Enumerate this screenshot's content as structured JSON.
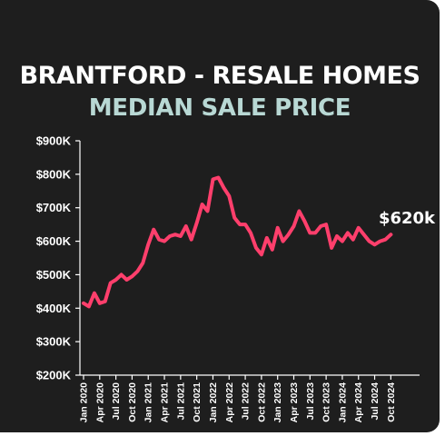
{
  "colors": {
    "background": "#1e1e1e",
    "title": "#ffffff",
    "subtitle": "#b8d8d4",
    "line": "#ff3f6c",
    "axis": "#ffffff"
  },
  "chart_data": {
    "type": "line",
    "title": "BRANTFORD - RESALE HOMES",
    "subtitle": "MEDIAN SALE PRICE",
    "xlabel": "",
    "ylabel": "",
    "ylim": [
      200000,
      900000
    ],
    "y_ticks": [
      200000,
      300000,
      400000,
      500000,
      600000,
      700000,
      800000,
      900000
    ],
    "y_tick_labels": [
      "$200K",
      "$300K",
      "$400K",
      "$500K",
      "$600K",
      "$700K",
      "$800K",
      "$900K"
    ],
    "x_tick_labels": [
      "Jan 2020",
      "Apr 2020",
      "Jul 2020",
      "Oct 2020",
      "Jan 2021",
      "Apr 2021",
      "Jul 2021",
      "Oct 2021",
      "Jan 2022",
      "Apr 2022",
      "Jul 2022",
      "Oct 2022",
      "Jan 2023",
      "Apr 2023",
      "Jul 2023",
      "Oct 2023",
      "Jan 2024",
      "Apr 2024",
      "Jul 2024",
      "Oct 2024"
    ],
    "grid": false,
    "annotation": "$620k",
    "series": [
      {
        "x": [
          "2020-01",
          "2020-02",
          "2020-03",
          "2020-04",
          "2020-05",
          "2020-06",
          "2020-07",
          "2020-08",
          "2020-09",
          "2020-10",
          "2020-11",
          "2020-12",
          "2021-01",
          "2021-02",
          "2021-03",
          "2021-04",
          "2021-05",
          "2021-06",
          "2021-07",
          "2021-08",
          "2021-09",
          "2021-10",
          "2021-11",
          "2021-12",
          "2022-01",
          "2022-02",
          "2022-03",
          "2022-04",
          "2022-05",
          "2022-06",
          "2022-07",
          "2022-08",
          "2022-09",
          "2022-10",
          "2022-11",
          "2022-12",
          "2023-01",
          "2023-02",
          "2023-03",
          "2023-04",
          "2023-05",
          "2023-06",
          "2023-07",
          "2023-08",
          "2023-09",
          "2023-10",
          "2023-11",
          "2023-12",
          "2024-01",
          "2024-02",
          "2024-03",
          "2024-04",
          "2024-05",
          "2024-06",
          "2024-07",
          "2024-08",
          "2024-09",
          "2024-10"
        ],
        "values": [
          415000,
          405000,
          445000,
          415000,
          420000,
          475000,
          485000,
          500000,
          485000,
          495000,
          510000,
          535000,
          590000,
          635000,
          605000,
          600000,
          615000,
          620000,
          615000,
          645000,
          605000,
          655000,
          710000,
          690000,
          785000,
          790000,
          760000,
          735000,
          670000,
          650000,
          650000,
          625000,
          580000,
          560000,
          610000,
          575000,
          640000,
          600000,
          620000,
          645000,
          690000,
          660000,
          625000,
          625000,
          645000,
          650000,
          580000,
          615000,
          600000,
          625000,
          605000,
          640000,
          620000,
          600000,
          590000,
          600000,
          605000,
          620000
        ]
      }
    ]
  }
}
